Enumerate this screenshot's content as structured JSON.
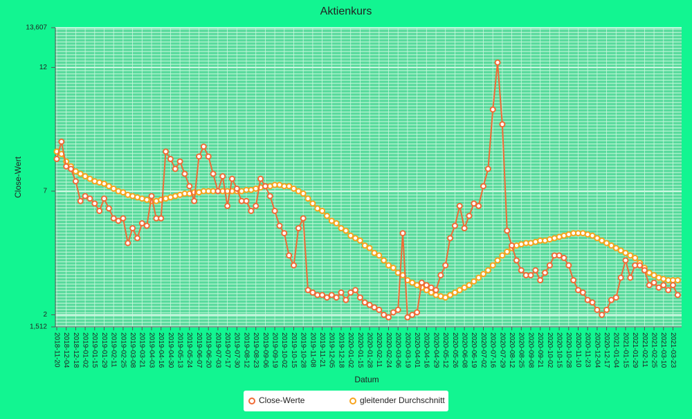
{
  "chart_data": {
    "type": "line",
    "title": "Aktienkurs",
    "x_label": "Datum",
    "y_label": "Close-Wert",
    "categories": [
      "2018-11-20",
      null,
      "2018-12-04",
      null,
      "2018-12-18",
      null,
      "2019-01-02",
      null,
      "2019-01-15",
      null,
      "2019-01-29",
      null,
      "2019-02-11",
      null,
      "2019-02-25",
      null,
      "2019-03-08",
      null,
      "2019-03-21",
      null,
      "2019-04-03",
      null,
      "2019-04-16",
      null,
      "2019-04-30",
      null,
      "2019-05-13",
      null,
      "2019-05-24",
      null,
      "2019-06-07",
      null,
      "2019-06-20",
      null,
      "2019-07-03",
      null,
      "2019-07-17",
      null,
      "2019-07-30",
      null,
      "2019-08-12",
      null,
      "2019-08-23",
      null,
      "2019-09-06",
      null,
      "2019-09-19",
      null,
      "2019-10-02",
      null,
      "2019-10-15",
      null,
      "2019-10-28",
      null,
      "2019-11-08",
      null,
      "2019-11-21",
      null,
      "2019-12-05",
      null,
      "2019-12-18",
      null,
      "2020-01-02",
      null,
      "2020-01-15",
      null,
      "2020-01-28",
      null,
      "2020-02-11",
      null,
      "2020-02-24",
      null,
      "2020-03-06",
      null,
      "2020-03-19",
      null,
      "2020-04-01",
      null,
      "2020-04-16",
      null,
      "2020-04-29",
      null,
      "2020-05-12",
      null,
      "2020-05-26",
      null,
      "2020-06-08",
      null,
      "2020-06-19",
      null,
      "2020-07-02",
      null,
      "2020-07-16",
      null,
      "2020-07-29",
      null,
      "2020-08-12",
      null,
      "2020-08-25",
      null,
      "2020-09-08",
      null,
      "2020-09-21",
      null,
      "2020-10-02",
      null,
      "2020-10-15",
      null,
      "2020-10-28",
      null,
      "2020-11-10",
      null,
      "2020-11-23",
      null,
      "2020-12-04",
      null,
      "2020-12-17",
      null,
      "2021-01-04",
      null,
      "2021-01-15",
      null,
      "2021-01-29",
      null,
      "2021-02-11",
      null,
      "2021-02-25",
      null,
      "2021-03-10",
      null,
      "2021-03-23",
      null
    ],
    "series": [
      {
        "name": "Close-Werte",
        "color": "#f06a35",
        "values": [
          8.3,
          9.0,
          8.0,
          7.9,
          7.4,
          6.6,
          6.8,
          6.7,
          6.5,
          6.2,
          6.7,
          6.3,
          5.9,
          5.8,
          5.9,
          4.9,
          5.5,
          5.1,
          5.7,
          5.6,
          6.8,
          5.9,
          5.9,
          8.6,
          8.3,
          7.9,
          8.2,
          7.7,
          7.2,
          6.6,
          8.4,
          8.8,
          8.4,
          7.7,
          7.0,
          7.6,
          6.4,
          7.5,
          7.1,
          6.6,
          6.6,
          6.2,
          6.4,
          7.5,
          7.2,
          6.8,
          6.2,
          5.6,
          5.3,
          4.4,
          4.0,
          5.5,
          5.9,
          3.0,
          2.9,
          2.8,
          2.8,
          2.7,
          2.8,
          2.7,
          2.9,
          2.6,
          2.9,
          3.0,
          2.7,
          2.5,
          2.4,
          2.3,
          2.2,
          2.0,
          1.9,
          2.1,
          2.2,
          5.3,
          1.9,
          2.0,
          2.1,
          3.3,
          3.2,
          3.1,
          3.0,
          3.6,
          4.0,
          5.1,
          5.6,
          6.4,
          5.5,
          6.0,
          6.5,
          6.4,
          7.2,
          7.9,
          10.3,
          12.2,
          9.7,
          5.4,
          4.8,
          4.2,
          3.8,
          3.6,
          3.6,
          3.8,
          3.4,
          3.7,
          4.0,
          4.4,
          4.4,
          4.3,
          4.0,
          3.4,
          3.0,
          2.9,
          2.6,
          2.5,
          2.2,
          2.0,
          2.2,
          2.6,
          2.7,
          3.5,
          4.2,
          3.5,
          4.0,
          4.0,
          3.8,
          3.2,
          3.3,
          3.1,
          3.2,
          3.0,
          3.2,
          2.8
        ]
      },
      {
        "name": "gleitender Durchschnitt",
        "color": "#f7a31c",
        "values": [
          8.6,
          8.5,
          8.2,
          8.0,
          7.8,
          7.7,
          7.6,
          7.5,
          7.4,
          7.35,
          7.3,
          7.2,
          7.1,
          7.0,
          6.95,
          6.85,
          6.8,
          6.75,
          6.7,
          6.65,
          6.6,
          6.6,
          6.65,
          6.7,
          6.75,
          6.8,
          6.85,
          6.9,
          6.9,
          6.95,
          6.95,
          7.0,
          7.0,
          7.0,
          7.0,
          7.0,
          7.0,
          7.0,
          7.0,
          7.0,
          7.05,
          7.05,
          7.1,
          7.15,
          7.2,
          7.2,
          7.25,
          7.25,
          7.2,
          7.2,
          7.1,
          7.0,
          6.9,
          6.7,
          6.5,
          6.3,
          6.2,
          6.0,
          5.8,
          5.7,
          5.5,
          5.4,
          5.2,
          5.1,
          5.0,
          4.8,
          4.7,
          4.5,
          4.4,
          4.2,
          4.0,
          3.9,
          3.7,
          3.6,
          3.4,
          3.3,
          3.2,
          3.1,
          3.0,
          2.9,
          2.8,
          2.75,
          2.7,
          2.8,
          2.9,
          3.0,
          3.1,
          3.2,
          3.35,
          3.5,
          3.65,
          3.8,
          4.0,
          4.2,
          4.4,
          4.55,
          4.7,
          4.8,
          4.85,
          4.9,
          4.9,
          4.95,
          5.0,
          5.0,
          5.05,
          5.1,
          5.15,
          5.2,
          5.25,
          5.3,
          5.3,
          5.3,
          5.25,
          5.2,
          5.1,
          5.0,
          4.9,
          4.8,
          4.7,
          4.6,
          4.5,
          4.4,
          4.3,
          4.1,
          3.9,
          3.7,
          3.6,
          3.5,
          3.45,
          3.4,
          3.4,
          3.4
        ]
      }
    ],
    "ylim": [
      1.512,
      13.607
    ],
    "yticks": [
      {
        "value": 1.512,
        "label": "1,512"
      },
      2,
      7,
      12,
      {
        "value": 13.607,
        "label": "13,607"
      }
    ],
    "grid": true,
    "legend": "bottom"
  }
}
